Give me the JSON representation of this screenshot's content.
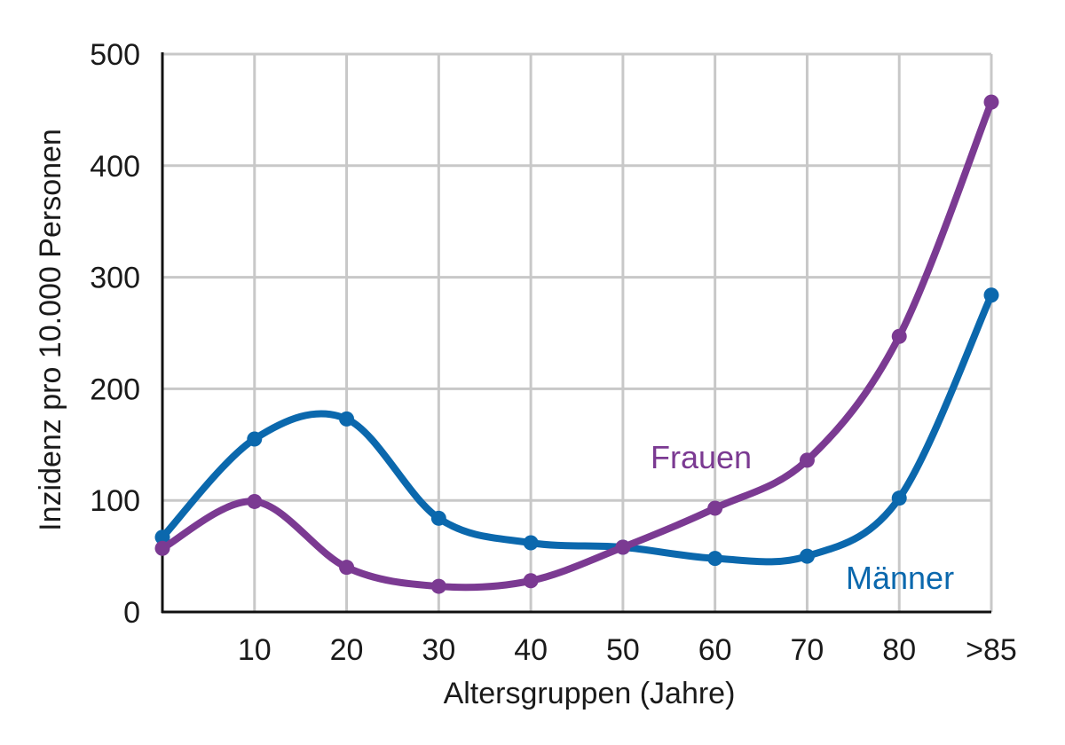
{
  "chart_data": {
    "type": "line",
    "xlabel": "Altersgruppen (Jahre)",
    "ylabel": "Inzidenz pro 10.000 Personen",
    "x_ticks": [
      "10",
      "20",
      "30",
      "40",
      "50",
      "60",
      "70",
      "80",
      ">85"
    ],
    "y_ticks": [
      "0",
      "100",
      "200",
      "300",
      "400",
      "500"
    ],
    "xlim": [
      0,
      90
    ],
    "ylim": [
      0,
      500
    ],
    "grid": true,
    "series": [
      {
        "name": "Frauen",
        "color": "#7b3a92",
        "x": [
          0,
          10,
          20,
          30,
          40,
          50,
          60,
          70,
          80,
          90
        ],
        "values": [
          57,
          99,
          40,
          23,
          28,
          58,
          93,
          136,
          247,
          457
        ]
      },
      {
        "name": "Männer",
        "color": "#0b68ad",
        "x": [
          0,
          10,
          20,
          30,
          40,
          50,
          60,
          70,
          80,
          90
        ],
        "values": [
          67,
          155,
          173,
          84,
          62,
          58,
          48,
          50,
          102,
          284
        ]
      }
    ]
  }
}
